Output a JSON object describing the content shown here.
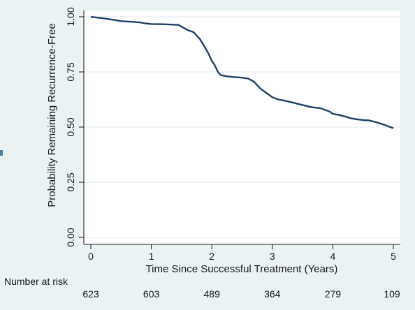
{
  "chart_data": {
    "type": "line",
    "title": "",
    "xlabel": "Time Since Successful Treatment (Years)",
    "ylabel": "Probability Remaining Recurrence-Free",
    "xlim": [
      0,
      5
    ],
    "ylim": [
      0,
      1
    ],
    "x_ticks": [
      0,
      1,
      2,
      3,
      4,
      5
    ],
    "x_tick_labels": [
      "0",
      "1",
      "2",
      "3",
      "4",
      "5"
    ],
    "y_ticks": [
      0,
      0.25,
      0.5,
      0.75,
      1
    ],
    "y_tick_labels": [
      "0.00",
      "0.25",
      "0.50",
      "0.75",
      "1.00"
    ],
    "grid": true,
    "series": [
      {
        "color": "#1f3f66",
        "x": [
          0,
          0.05,
          0.2,
          0.4,
          0.5,
          0.7,
          0.8,
          0.9,
          1.0,
          1.2,
          1.3,
          1.45,
          1.5,
          1.6,
          1.7,
          1.75,
          1.8,
          1.9,
          1.95,
          2.0,
          2.05,
          2.1,
          2.15,
          2.25,
          2.35,
          2.5,
          2.6,
          2.7,
          2.75,
          2.8,
          2.9,
          3.0,
          3.1,
          3.2,
          3.35,
          3.5,
          3.65,
          3.8,
          3.95,
          4.0,
          4.1,
          4.2,
          4.3,
          4.4,
          4.5,
          4.6,
          4.7,
          4.8,
          4.9,
          5.0
        ],
        "y": [
          1.0,
          0.998,
          0.993,
          0.985,
          0.98,
          0.977,
          0.975,
          0.97,
          0.967,
          0.966,
          0.965,
          0.963,
          0.955,
          0.94,
          0.93,
          0.915,
          0.9,
          0.855,
          0.83,
          0.8,
          0.78,
          0.75,
          0.735,
          0.73,
          0.727,
          0.724,
          0.72,
          0.705,
          0.69,
          0.675,
          0.655,
          0.635,
          0.625,
          0.62,
          0.61,
          0.6,
          0.59,
          0.585,
          0.57,
          0.56,
          0.555,
          0.548,
          0.54,
          0.535,
          0.532,
          0.53,
          0.523,
          0.515,
          0.505,
          0.495
        ]
      }
    ],
    "risk_table": {
      "label": "Number at risk",
      "times": [
        0,
        1,
        2,
        3,
        4,
        5
      ],
      "counts": [
        "623",
        "603",
        "489",
        "364",
        "279",
        "109"
      ]
    }
  },
  "colors": {
    "background": "#eaf2f3",
    "plot_area": "#ffffff",
    "line": "#1f3f66",
    "grid": "#e1eaee",
    "axis": "#1a1a1a",
    "side_marker": "#4f7fa3"
  }
}
